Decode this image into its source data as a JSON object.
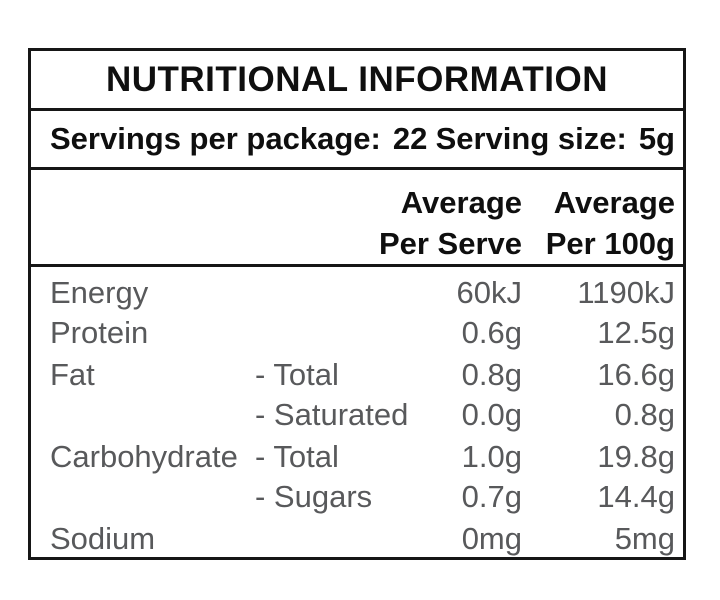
{
  "panel": {
    "title": "NUTRITIONAL INFORMATION",
    "servings": {
      "per_package_label": "Servings per package:",
      "per_package_value": "22",
      "size_label": "Serving size:",
      "size_value": "5g"
    },
    "columns": [
      {
        "line1": "Average",
        "line2": "Per Serve"
      },
      {
        "line1": "Average",
        "line2": "Per 100g"
      }
    ],
    "rows": [
      {
        "name": "Energy",
        "sub": "",
        "per_serve": "60kJ",
        "per_100g": "1190kJ"
      },
      {
        "name": "Protein",
        "sub": "",
        "per_serve": "0.6g",
        "per_100g": "12.5g"
      },
      {
        "name": "Fat",
        "sub": "- Total",
        "per_serve": "0.8g",
        "per_100g": "16.6g"
      },
      {
        "name": "",
        "sub": "- Saturated",
        "per_serve": "0.0g",
        "per_100g": "0.8g"
      },
      {
        "name": "Carbohydrate",
        "sub": "- Total",
        "per_serve": "1.0g",
        "per_100g": "19.8g"
      },
      {
        "name": "",
        "sub": "- Sugars",
        "per_serve": "0.7g",
        "per_100g": "14.4g"
      },
      {
        "name": "Sodium",
        "sub": "",
        "per_serve": "0mg",
        "per_100g": "5mg"
      }
    ],
    "colors": {
      "heading_text": "#0f0f0f",
      "data_text": "#58595b",
      "border": "#161616",
      "background": "#ffffff"
    }
  }
}
